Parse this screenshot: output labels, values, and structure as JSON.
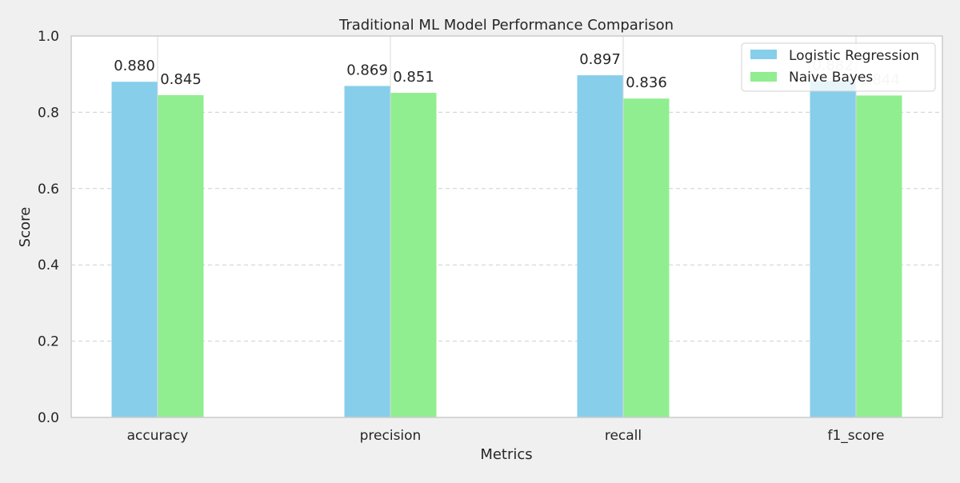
{
  "chart_data": {
    "type": "bar",
    "title": "Traditional ML Model Performance Comparison",
    "xlabel": "Metrics",
    "ylabel": "Score",
    "categories": [
      "accuracy",
      "precision",
      "recall",
      "f1_score"
    ],
    "series": [
      {
        "name": "Logistic Regression",
        "color": "#87ceeb",
        "values": [
          0.88,
          0.869,
          0.897,
          0.882
        ],
        "labels": [
          "0.880",
          "0.869",
          "0.897",
          "0.882"
        ]
      },
      {
        "name": "Naive Bayes",
        "color": "#90ee90",
        "values": [
          0.845,
          0.851,
          0.836,
          0.844
        ],
        "labels": [
          "0.845",
          "0.851",
          "0.836",
          "0.844"
        ]
      }
    ],
    "ylim": [
      0.0,
      1.0
    ],
    "yticks": [
      "0.0",
      "0.2",
      "0.4",
      "0.6",
      "0.8",
      "1.0"
    ],
    "grid": "dashed",
    "legend_position": "top-right"
  }
}
